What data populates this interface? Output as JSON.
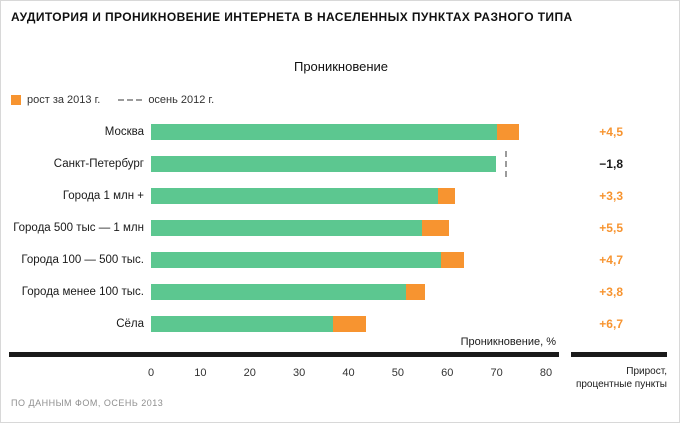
{
  "chart_data": {
    "type": "bar",
    "orientation": "horizontal",
    "title": "АУДИТОРИЯ И ПРОНИКНОВЕНИЕ ИНТЕРНЕТА В НАСЕЛЕННЫХ ПУНКТАХ РАЗНОГО ТИПА",
    "subtitle": "Проникновение",
    "xlabel": "Проникновение, %",
    "xlim": [
      0,
      80
    ],
    "xticks": [
      0,
      10,
      20,
      30,
      40,
      50,
      60,
      70,
      80
    ],
    "grid": false,
    "colors": {
      "green": "#5cc790",
      "orange": "#f79430",
      "dash": "#9b9b9b",
      "negative_text": "#1a1a1a"
    },
    "legend": [
      {
        "swatch": "square",
        "color": "#f79430",
        "label": "рост за 2013 г."
      },
      {
        "swatch": "dashed-line",
        "color": "#9b9b9b",
        "label": "осень 2012 г."
      }
    ],
    "rows": [
      {
        "label": "Москва",
        "base": 70.0,
        "growth": 4.5,
        "growth_label": "+4,5"
      },
      {
        "label": "Санкт-Петербург",
        "base": 69.8,
        "growth": 0,
        "marker_2012": 71.6,
        "growth_label": "−1,8",
        "negative": true
      },
      {
        "label": "Города 1 млн +",
        "base": 58.2,
        "growth": 3.3,
        "growth_label": "+3,3"
      },
      {
        "label": "Города 500 тыс — 1 млн",
        "base": 54.8,
        "growth": 5.5,
        "growth_label": "+5,5"
      },
      {
        "label": "Города 100 — 500 тыс.",
        "base": 58.7,
        "growth": 4.7,
        "growth_label": "+4,7"
      },
      {
        "label": "Города менее 100 тыс.",
        "base": 51.7,
        "growth": 3.8,
        "growth_label": "+3,8"
      },
      {
        "label": "Сёла",
        "base": 36.9,
        "growth": 6.7,
        "growth_label": "+6,7"
      }
    ],
    "right_column_header": "Прирост,\nпроцентные пункты",
    "source": "ПО ДАННЫМ ФОМ, ОСЕНЬ 2013"
  }
}
